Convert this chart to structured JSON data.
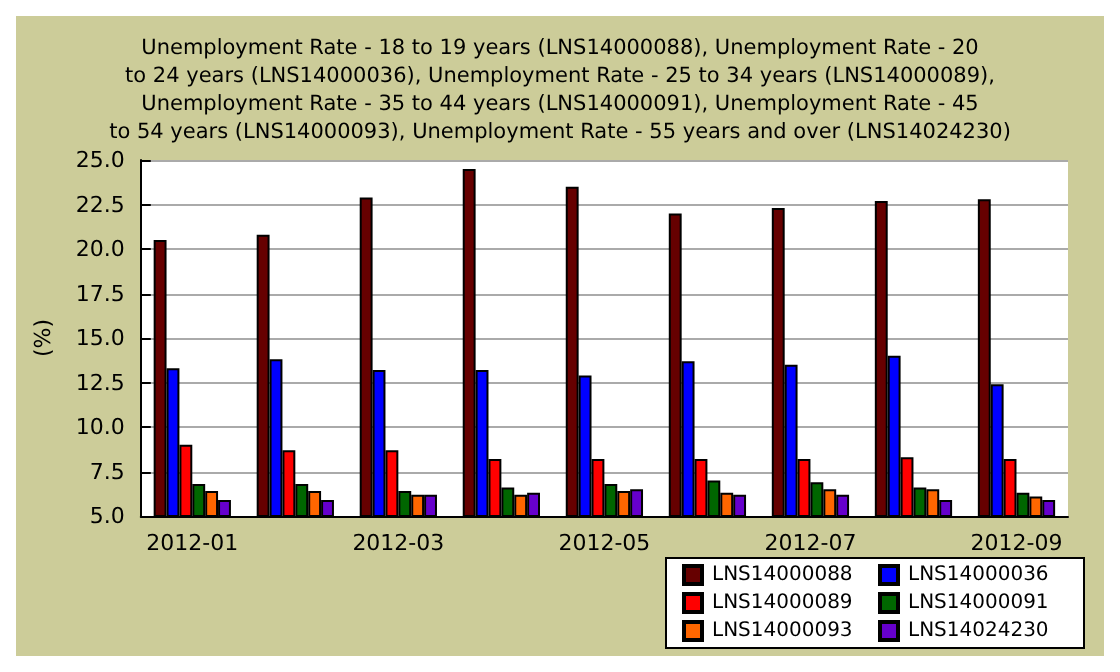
{
  "chart_data": {
    "type": "bar",
    "title": "Unemployment Rate - 18 to 19 years (LNS14000088), Unemployment Rate - 20\nto 24 years (LNS14000036), Unemployment Rate - 25 to 34 years (LNS14000089),\nUnemployment Rate - 35 to 44 years (LNS14000091), Unemployment Rate - 45\nto 54 years (LNS14000093), Unemployment Rate - 55 years and over (LNS14024230)",
    "ylabel": "(%)",
    "categories": [
      "2012-01",
      null,
      "2012-03",
      null,
      "2012-05",
      null,
      "2012-07",
      null,
      "2012-09"
    ],
    "series": [
      {
        "name": "LNS14000088",
        "color": "#660000",
        "values": [
          20.5,
          20.8,
          22.9,
          24.5,
          23.5,
          22.0,
          22.3,
          22.7,
          22.8
        ]
      },
      {
        "name": "LNS14000036",
        "color": "#0000ff",
        "values": [
          13.3,
          13.8,
          13.2,
          13.2,
          12.9,
          13.7,
          13.5,
          14.0,
          12.4
        ]
      },
      {
        "name": "LNS14000089",
        "color": "#ff0000",
        "values": [
          9.0,
          8.7,
          8.7,
          8.2,
          8.2,
          8.2,
          8.2,
          8.3,
          8.2
        ]
      },
      {
        "name": "LNS14000091",
        "color": "#006600",
        "values": [
          6.8,
          6.8,
          6.4,
          6.6,
          6.8,
          7.0,
          6.9,
          6.6,
          6.3
        ]
      },
      {
        "name": "LNS14000093",
        "color": "#ff6600",
        "values": [
          6.4,
          6.4,
          6.2,
          6.2,
          6.4,
          6.3,
          6.5,
          6.5,
          6.1
        ]
      },
      {
        "name": "LNS14024230",
        "color": "#6600cc",
        "values": [
          5.9,
          5.9,
          6.2,
          6.3,
          6.5,
          6.2,
          6.2,
          5.9,
          5.9
        ]
      }
    ],
    "ylim": [
      5,
      25
    ],
    "yticks": [
      {
        "value": 5,
        "label": "5.0"
      },
      7.5,
      {
        "value": 10,
        "label": "10.0"
      },
      12.5,
      {
        "value": 15,
        "label": "15.0"
      },
      17.5,
      {
        "value": 20,
        "label": "20.0"
      },
      22.5,
      {
        "value": 25,
        "label": "25.0"
      }
    ],
    "grid": "y",
    "legend": "bottom right"
  }
}
